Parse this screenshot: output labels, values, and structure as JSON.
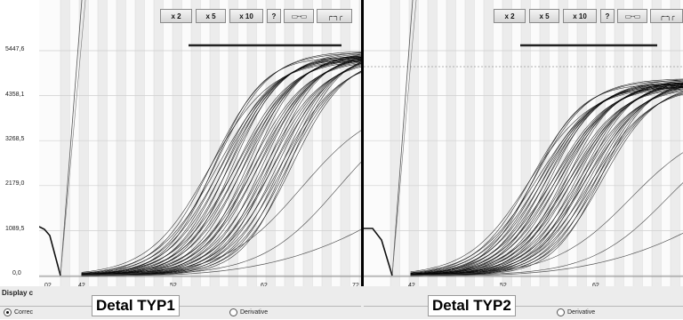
{
  "toolbar": {
    "zoom_x2": "x 2",
    "zoom_x5": "x 5",
    "zoom_x10": "x 10",
    "help": "?"
  },
  "y_axis_ticks": [
    "5447,6",
    "4358,1",
    "3268,5",
    "2179,0",
    "1089,5",
    "0,0"
  ],
  "left_panel": {
    "x_ticks": [
      ",02",
      ",42",
      ",52",
      ",62",
      ",72"
    ],
    "tag": "Detal TYP1"
  },
  "right_panel": {
    "x_ticks": [
      ",42",
      ",52",
      ",62"
    ],
    "tag": "Detal TYP2"
  },
  "display_section": {
    "label": "Display c",
    "option_correct": "Correc",
    "option_derivative": "Derivative"
  },
  "chart_data": [
    {
      "type": "line",
      "title": "Detal TYP1",
      "x_tick_labels": [
        ",02",
        ",42",
        ",52",
        ",62",
        ",72"
      ],
      "y_tick_labels": [
        "0,0",
        "1089,5",
        "2179,0",
        "3268,5",
        "4358,1",
        "5447,6"
      ],
      "ylim": [
        0,
        5447.6
      ],
      "xlim": [
        0.32,
        0.72
      ],
      "grid": true,
      "curve_family": "~40 overlaid sigmoidal curves",
      "curve_range": {
        "x_start": 0.34,
        "x_midpoint_min": 0.48,
        "x_midpoint_max": 0.57,
        "plateau_y": 5447.6
      },
      "reference_line_y": 5447.6,
      "lower_curve_end_y": 1300
    },
    {
      "type": "line",
      "title": "Detal TYP2",
      "x_tick_labels": [
        ",42",
        ",52",
        ",62"
      ],
      "y_tick_labels": [
        "0,0",
        "1089,5",
        "2179,0",
        "3268,5",
        "4358,1",
        "5447,6"
      ],
      "ylim": [
        0,
        5447.6
      ],
      "xlim": [
        0.32,
        0.72
      ],
      "grid": true,
      "curve_family": "~40 overlaid sigmoidal curves",
      "curve_range": {
        "x_start": 0.34,
        "x_midpoint_min": 0.47,
        "x_midpoint_max": 0.55,
        "plateau_y": 4780
      },
      "reference_line_y": 5447.6,
      "lower_curve_end_y": 1300
    }
  ]
}
